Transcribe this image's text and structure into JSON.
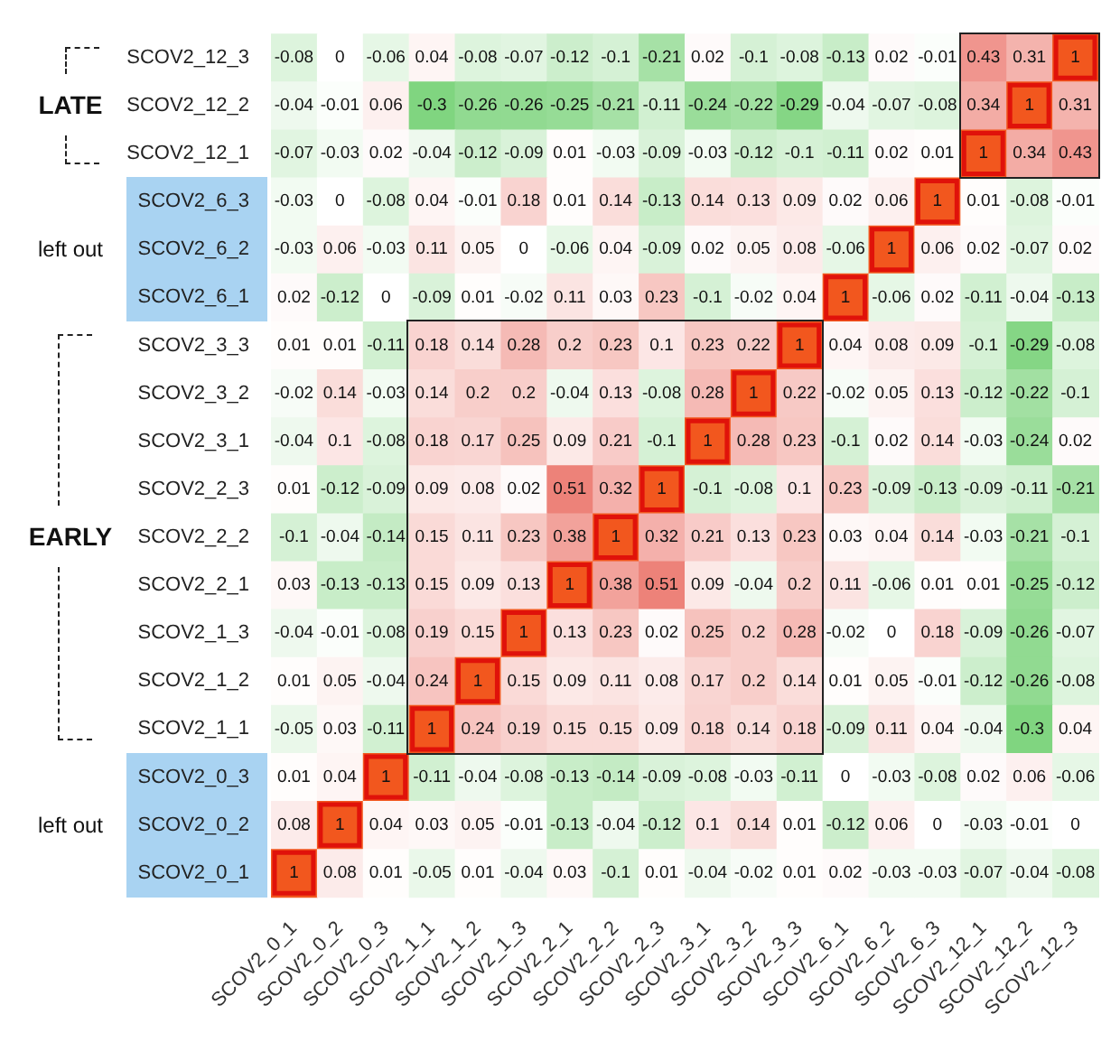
{
  "chart_data": {
    "type": "heatmap",
    "categories": [
      "SCOV2_0_1",
      "SCOV2_0_2",
      "SCOV2_0_3",
      "SCOV2_1_1",
      "SCOV2_1_2",
      "SCOV2_1_3",
      "SCOV2_2_1",
      "SCOV2_2_2",
      "SCOV2_2_3",
      "SCOV2_3_1",
      "SCOV2_3_2",
      "SCOV2_3_3",
      "SCOV2_6_1",
      "SCOV2_6_2",
      "SCOV2_6_3",
      "SCOV2_12_1",
      "SCOV2_12_2",
      "SCOV2_12_3"
    ],
    "y_categories": [
      "SCOV2_12_3",
      "SCOV2_12_2",
      "SCOV2_12_1",
      "SCOV2_6_3",
      "SCOV2_6_2",
      "SCOV2_6_1",
      "SCOV2_3_3",
      "SCOV2_3_2",
      "SCOV2_3_1",
      "SCOV2_2_3",
      "SCOV2_2_2",
      "SCOV2_2_1",
      "SCOV2_1_3",
      "SCOV2_1_2",
      "SCOV2_1_1",
      "SCOV2_0_3",
      "SCOV2_0_2",
      "SCOV2_0_1"
    ],
    "cells": [
      [
        -0.08,
        0,
        -0.06,
        0.04,
        -0.08,
        -0.07,
        -0.12,
        -0.1,
        -0.21,
        0.02,
        -0.1,
        -0.08,
        -0.13,
        0.02,
        -0.01,
        0.43,
        0.31,
        1
      ],
      [
        -0.04,
        -0.01,
        0.06,
        -0.3,
        -0.26,
        -0.26,
        -0.25,
        -0.21,
        -0.11,
        -0.24,
        -0.22,
        -0.29,
        -0.04,
        -0.07,
        -0.08,
        0.34,
        1,
        0.31
      ],
      [
        -0.07,
        -0.03,
        0.02,
        -0.04,
        -0.12,
        -0.09,
        0.01,
        -0.03,
        -0.09,
        -0.03,
        -0.12,
        -0.1,
        -0.11,
        0.02,
        0.01,
        1,
        0.34,
        0.43
      ],
      [
        -0.03,
        0,
        -0.08,
        0.04,
        -0.01,
        0.18,
        0.01,
        0.14,
        -0.13,
        0.14,
        0.13,
        0.09,
        0.02,
        0.06,
        1,
        0.01,
        -0.08,
        -0.01
      ],
      [
        -0.03,
        0.06,
        -0.03,
        0.11,
        0.05,
        0,
        -0.06,
        0.04,
        -0.09,
        0.02,
        0.05,
        0.08,
        -0.06,
        1,
        0.06,
        0.02,
        -0.07,
        0.02
      ],
      [
        0.02,
        -0.12,
        0,
        -0.09,
        0.01,
        -0.02,
        0.11,
        0.03,
        0.23,
        -0.1,
        -0.02,
        0.04,
        1,
        -0.06,
        0.02,
        -0.11,
        -0.04,
        -0.13
      ],
      [
        0.01,
        0.01,
        -0.11,
        0.18,
        0.14,
        0.28,
        0.2,
        0.23,
        0.1,
        0.23,
        0.22,
        1,
        0.04,
        0.08,
        0.09,
        -0.1,
        -0.29,
        -0.08
      ],
      [
        -0.02,
        0.14,
        -0.03,
        0.14,
        0.2,
        0.2,
        -0.04,
        0.13,
        -0.08,
        0.28,
        1,
        0.22,
        -0.02,
        0.05,
        0.13,
        -0.12,
        -0.22,
        -0.1
      ],
      [
        -0.04,
        0.1,
        -0.08,
        0.18,
        0.17,
        0.25,
        0.09,
        0.21,
        -0.1,
        1,
        0.28,
        0.23,
        -0.1,
        0.02,
        0.14,
        -0.03,
        -0.24,
        0.02
      ],
      [
        0.01,
        -0.12,
        -0.09,
        0.09,
        0.08,
        0.02,
        0.51,
        0.32,
        1,
        -0.1,
        -0.08,
        0.1,
        0.23,
        -0.09,
        -0.13,
        -0.09,
        -0.11,
        -0.21
      ],
      [
        -0.1,
        -0.04,
        -0.14,
        0.15,
        0.11,
        0.23,
        0.38,
        1,
        0.32,
        0.21,
        0.13,
        0.23,
        0.03,
        0.04,
        0.14,
        -0.03,
        -0.21,
        -0.1
      ],
      [
        0.03,
        -0.13,
        -0.13,
        0.15,
        0.09,
        0.13,
        1,
        0.38,
        0.51,
        0.09,
        -0.04,
        0.2,
        0.11,
        -0.06,
        0.01,
        0.01,
        -0.25,
        -0.12
      ],
      [
        -0.04,
        -0.01,
        -0.08,
        0.19,
        0.15,
        1,
        0.13,
        0.23,
        0.02,
        0.25,
        0.2,
        0.28,
        -0.02,
        0,
        0.18,
        -0.09,
        -0.26,
        -0.07
      ],
      [
        0.01,
        0.05,
        -0.04,
        0.24,
        1,
        0.15,
        0.09,
        0.11,
        0.08,
        0.17,
        0.2,
        0.14,
        0.01,
        0.05,
        -0.01,
        -0.12,
        -0.26,
        -0.08
      ],
      [
        -0.05,
        0.03,
        -0.11,
        1,
        0.24,
        0.19,
        0.15,
        0.15,
        0.09,
        0.18,
        0.14,
        0.18,
        -0.09,
        0.11,
        0.04,
        -0.04,
        -0.3,
        0.04
      ],
      [
        0.01,
        0.04,
        1,
        -0.11,
        -0.04,
        -0.08,
        -0.13,
        -0.14,
        -0.09,
        -0.08,
        -0.03,
        -0.11,
        0,
        -0.03,
        -0.08,
        0.02,
        0.06,
        -0.06
      ],
      [
        0.08,
        1,
        0.04,
        0.03,
        0.05,
        -0.01,
        -0.13,
        -0.04,
        -0.12,
        0.1,
        0.14,
        0.01,
        -0.12,
        0.06,
        0,
        -0.03,
        -0.01,
        0
      ],
      [
        1,
        0.08,
        0.01,
        -0.05,
        0.01,
        -0.04,
        0.03,
        -0.1,
        0.01,
        -0.04,
        -0.02,
        0.01,
        0.02,
        -0.03,
        -0.03,
        -0.07,
        -0.04,
        -0.08
      ]
    ],
    "data_labels": true,
    "annotations": [
      "LATE",
      "left out",
      "EARLY",
      "left out"
    ]
  }
}
